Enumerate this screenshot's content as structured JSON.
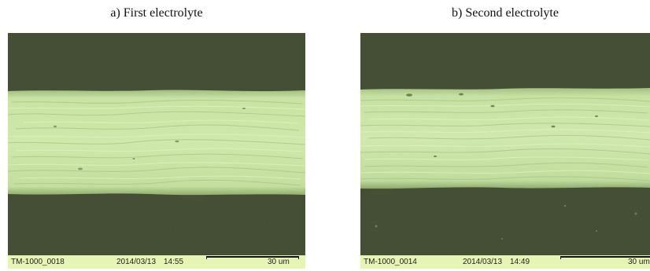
{
  "panels": [
    {
      "title": "a) First electrolyte",
      "info": {
        "id": "TM-1000_0018",
        "date": "2014/03/13",
        "time": "14:55",
        "scale": "30 um"
      }
    },
    {
      "title": "b) Second electrolyte",
      "info": {
        "id": "TM-1000_0014",
        "date": "2014/03/13",
        "time": "14:49",
        "scale": "30 um"
      }
    }
  ],
  "colors": {
    "background": "#454f35",
    "fiber": "#c6e2a0",
    "info_bar": "#e7f5b4"
  }
}
